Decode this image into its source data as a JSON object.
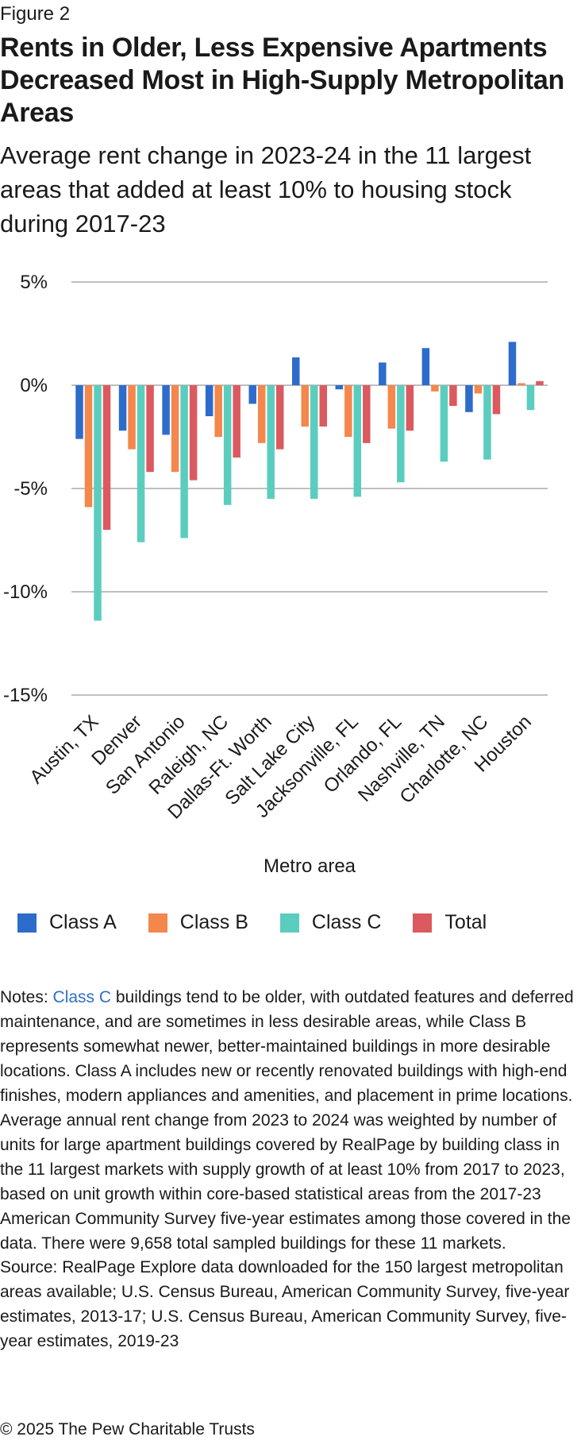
{
  "figure_label": "Figure 2",
  "title": "Rents in Older, Less Expensive Apartments Decreased Most in High-Supply Metropolitan Areas",
  "subtitle": "Average rent change in 2023-24 in the 11 largest areas that added at least 10% to housing stock during 2017-23",
  "colors": {
    "Class A": "#2d6ccb",
    "Class B": "#f4874b",
    "Class C": "#5bcdbe",
    "Total": "#db5a5f",
    "grid": "#999999"
  },
  "chart_data": {
    "type": "bar",
    "xlabel": "Metro area",
    "ylabel": "",
    "ylim": [
      -15,
      5
    ],
    "yticks": [
      5,
      0,
      -5,
      -10,
      -15
    ],
    "ytick_labels": [
      "5%",
      "0%",
      "-5%",
      "-10%",
      "-15%"
    ],
    "grid": true,
    "legend_position": "bottom",
    "categories": [
      "Austin, TX",
      "Denver",
      "San Antonio",
      "Raleigh, NC",
      "Dallas-Ft. Worth",
      "Salt Lake City",
      "Jacksonville, FL",
      "Orlando, FL",
      "Nashville, TN",
      "Charlotte, NC",
      "Houston"
    ],
    "series": [
      {
        "name": "Class A",
        "values": [
          -2.6,
          -2.2,
          -2.4,
          -1.5,
          -0.9,
          1.35,
          -0.2,
          1.1,
          1.8,
          -1.3,
          2.1
        ]
      },
      {
        "name": "Class B",
        "values": [
          -5.9,
          -3.1,
          -4.2,
          -2.5,
          -2.8,
          -2.0,
          -2.5,
          -2.1,
          -0.3,
          -0.4,
          0.1
        ]
      },
      {
        "name": "Class C",
        "values": [
          -11.4,
          -7.6,
          -7.4,
          -5.8,
          -5.5,
          -5.5,
          -5.4,
          -4.7,
          -3.7,
          -3.6,
          -1.2
        ]
      },
      {
        "name": "Total",
        "values": [
          -7.0,
          -4.2,
          -4.6,
          -3.5,
          -3.1,
          -2.0,
          -2.8,
          -2.2,
          -1.0,
          -1.4,
          0.2
        ]
      }
    ]
  },
  "notes": {
    "prefix": "Notes: ",
    "highlight": "Class C",
    "text": " buildings tend to be older, with outdated features and deferred maintenance, and are sometimes in less desirable areas, while Class B represents somewhat newer, better-maintained buildings in more desirable locations. Class A includes new or recently renovated buildings with high-end finishes, modern appliances and amenities, and placement in prime locations. Average annual rent change from 2023 to 2024 was weighted by number of units for large apartment buildings covered by RealPage by building class in the 11 largest markets with supply growth of at least 10% from 2017 to 2023, based on unit growth within core-based statistical areas from the 2017-23 American Community Survey five-year estimates among those covered in the data. There were 9,658 total sampled buildings for these 11 markets."
  },
  "source": "Source: RealPage Explore data downloaded for the 150 largest metropolitan areas available; U.S. Census Bureau, American Community Survey, five-year estimates, 2013-17; U.S. Census Bureau, American Community Survey, five-year estimates, 2019-23",
  "copyright": "© 2025 The Pew Charitable Trusts"
}
